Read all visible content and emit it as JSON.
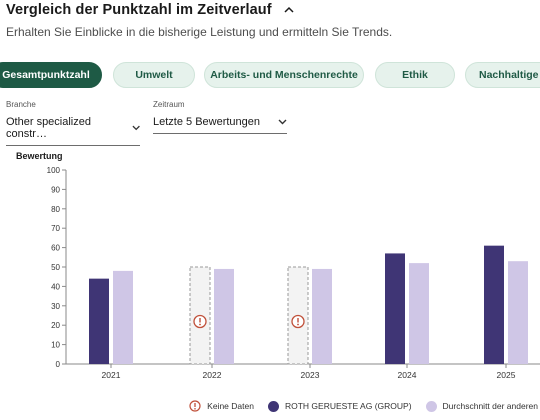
{
  "header": {
    "title": "Vergleich der Punktzahl im Zeitverlauf",
    "subtitle": "Erhalten Sie Einblicke in die bisherige Leistung und ermitteln Sie Trends."
  },
  "tabs": [
    {
      "label": "Gesamtpunktzahl",
      "active": true
    },
    {
      "label": "Umwelt",
      "active": false
    },
    {
      "label": "Arbeits- und Menschenrechte",
      "active": false
    },
    {
      "label": "Ethik",
      "active": false
    },
    {
      "label": "Nachhaltige Beschaffung",
      "active": false
    }
  ],
  "filters": {
    "branche": {
      "label": "Branche",
      "value": "Other specialized constr…"
    },
    "zeitraum": {
      "label": "Zeitraum",
      "value": "Letzte 5 Bewertungen"
    }
  },
  "colors": {
    "accent": "#1e5a45",
    "company": "#3f3575",
    "others": "#cfc6e6",
    "nodata": "#c0503a"
  },
  "chart_data": {
    "type": "bar",
    "ylabel": "Bewertung",
    "ylim": [
      0,
      100
    ],
    "yticks": [
      0,
      10,
      20,
      30,
      40,
      50,
      60,
      70,
      80,
      90,
      100
    ],
    "categories": [
      "2021",
      "2022",
      "2023",
      "2024",
      "2025"
    ],
    "series": [
      {
        "name": "ROTH GERUESTE AG (GROUP)",
        "values": [
          44,
          null,
          null,
          57,
          61
        ]
      },
      {
        "name": "Durchschnitt der anderen",
        "values": [
          48,
          49,
          49,
          52,
          53
        ]
      }
    ],
    "no_data_value": 50,
    "grid": false
  },
  "legend": {
    "nodata": "Keine Daten",
    "company": "ROTH GERUESTE AG (GROUP)",
    "others": "Durchschnitt der anderen"
  }
}
